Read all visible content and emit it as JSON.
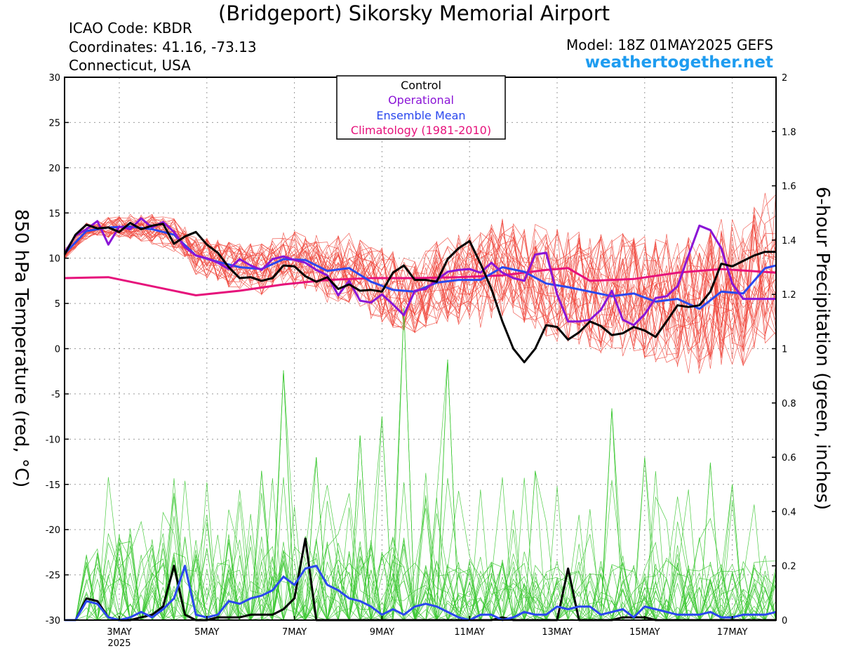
{
  "header": {
    "title": "(Bridgeport) Sikorsky Memorial Airport",
    "icao": "ICAO Code: KBDR",
    "coords": "Coordinates: 41.16, -73.13",
    "region": "Connecticut, USA",
    "model": "Model: 18Z 01MAY2025 GEFS",
    "site": "weathertogether.net"
  },
  "chart_data": {
    "type": "line",
    "title": "(Bridgeport) Sikorsky Memorial Airport",
    "ylabel_left": "850 hPa Temperature (red, °C)",
    "ylabel_right": "6-hour Precipitation (green, inches)",
    "xlim": [
      0,
      16.25
    ],
    "ylim_left": [
      -30,
      30
    ],
    "ylim_right": [
      0,
      2
    ],
    "yticks_left": [
      "30",
      "25",
      "20",
      "15",
      "10",
      "5",
      "0",
      "-5",
      "-10",
      "-15",
      "-20",
      "-25",
      "-30"
    ],
    "yticks_right": [
      "2",
      "1.8",
      "1.6",
      "1.4",
      "1.2",
      "1",
      "0.8",
      "0.6",
      "0.4",
      "0.2",
      "0"
    ],
    "x_tick_labels": [
      {
        "x": 1.25,
        "label": "3MAY",
        "sub": "2025"
      },
      {
        "x": 3.25,
        "label": "5MAY"
      },
      {
        "x": 5.25,
        "label": "7MAY"
      },
      {
        "x": 7.25,
        "label": "9MAY"
      },
      {
        "x": 9.25,
        "label": "11MAY"
      },
      {
        "x": 11.25,
        "label": "13MAY"
      },
      {
        "x": 13.25,
        "label": "15MAY"
      },
      {
        "x": 15.25,
        "label": "17MAY"
      }
    ],
    "grid": true,
    "legend_position": "top-center",
    "legend": [
      {
        "name": "Control",
        "color": "#000000"
      },
      {
        "name": "Operational",
        "color": "#8a14d6"
      },
      {
        "name": "Ensemble Mean",
        "color": "#2a47ee"
      },
      {
        "name": "Climatology (1981-2010)",
        "color": "#e6127b"
      }
    ],
    "series": [
      {
        "key": "climatology",
        "color": "#e6127b",
        "axis": "left",
        "width": 3,
        "x": [
          0,
          1,
          3,
          4,
          5,
          6,
          7,
          8,
          9,
          10,
          11,
          11.5,
          12,
          13,
          14,
          15,
          16.25
        ],
        "y": [
          7.8,
          7.9,
          5.9,
          6.4,
          7.1,
          7.6,
          7.8,
          7.8,
          7.9,
          8.1,
          8.7,
          8.9,
          7.5,
          7.7,
          8.4,
          8.8,
          8.4
        ]
      },
      {
        "key": "ensemble_mean_temp",
        "color": "#2a47ee",
        "axis": "left",
        "width": 3,
        "x": [
          0,
          0.5,
          1,
          1.5,
          2,
          2.5,
          3,
          3.5,
          4,
          4.5,
          5,
          5.5,
          6,
          6.5,
          7,
          7.5,
          8,
          8.5,
          9,
          9.5,
          10,
          10.5,
          11,
          11.5,
          12,
          12.5,
          13,
          13.5,
          14,
          14.5,
          15,
          15.5,
          16,
          16.25
        ],
        "y": [
          10.5,
          13,
          13.4,
          13.5,
          13.2,
          12.6,
          10.3,
          9.6,
          9,
          8.8,
          9.9,
          9.8,
          8.6,
          8.9,
          7.4,
          6.5,
          6.3,
          7.3,
          7.6,
          7.6,
          9,
          8.5,
          7.2,
          6.8,
          6.3,
          5.8,
          6.1,
          5.2,
          5.5,
          4.4,
          6.3,
          6.1,
          8.9,
          9.2
        ]
      },
      {
        "key": "operational",
        "color": "#8a14d6",
        "axis": "left",
        "width": 3,
        "x": [
          0,
          0.25,
          0.5,
          0.75,
          1,
          1.25,
          1.5,
          1.75,
          2,
          2.25,
          2.5,
          2.75,
          3,
          3.25,
          3.5,
          3.75,
          4,
          4.25,
          4.5,
          4.75,
          5,
          5.25,
          5.5,
          5.75,
          6,
          6.25,
          6.5,
          6.75,
          7,
          7.25,
          7.5,
          7.75,
          8,
          8.25,
          8.5,
          8.75,
          9,
          9.25,
          9.5,
          9.75,
          10,
          10.25,
          10.5,
          10.75,
          11,
          11.25,
          11.5,
          11.75,
          12,
          12.25,
          12.5,
          12.75,
          13,
          13.25,
          13.5,
          13.75,
          14,
          14.25,
          14.5,
          14.75,
          15,
          15.25,
          15.5,
          15.75,
          16,
          16.25
        ],
        "y": [
          10.6,
          12.5,
          13.2,
          14.1,
          11.5,
          13.5,
          13.2,
          14.4,
          13.4,
          14,
          12.9,
          11.2,
          10.3,
          10,
          9.5,
          8.8,
          9.9,
          9.2,
          8.7,
          9.9,
          10.2,
          9.8,
          9.5,
          8.7,
          8.1,
          5.9,
          7.5,
          5.3,
          5.1,
          6,
          4.9,
          3.7,
          6.4,
          6.6,
          7.6,
          8.5,
          8.7,
          8.8,
          8.4,
          9.5,
          8.4,
          7.8,
          7.5,
          10.4,
          10.6,
          6,
          3,
          3,
          3.2,
          4.3,
          6.4,
          3.2,
          2.6,
          3.8,
          5.6,
          5.8,
          6.9,
          10.3,
          13.6,
          13.1,
          11.1,
          7.2,
          5.5,
          5.5,
          5.5,
          5.5
        ]
      },
      {
        "key": "control",
        "color": "#000000",
        "axis": "left",
        "width": 3,
        "x": [
          0,
          0.25,
          0.5,
          0.75,
          1,
          1.25,
          1.5,
          1.75,
          2,
          2.25,
          2.5,
          2.75,
          3,
          3.25,
          3.5,
          3.75,
          4,
          4.25,
          4.5,
          4.75,
          5,
          5.25,
          5.5,
          5.75,
          6,
          6.25,
          6.5,
          6.75,
          7,
          7.25,
          7.5,
          7.75,
          8,
          8.25,
          8.5,
          8.75,
          9,
          9.25,
          9.5,
          9.75,
          10,
          10.25,
          10.5,
          10.75,
          11,
          11.25,
          11.5,
          11.75,
          12,
          12.25,
          12.5,
          12.75,
          13,
          13.25,
          13.5,
          13.75,
          14,
          14.25,
          14.5,
          14.75,
          15,
          15.25,
          15.5,
          15.75,
          16,
          16.25
        ],
        "y": [
          10.4,
          12.6,
          13.7,
          13.3,
          13.4,
          12.9,
          13.9,
          13.2,
          13.6,
          13.8,
          11.6,
          12.4,
          12.9,
          11.5,
          10.6,
          9,
          7.8,
          7.9,
          7.5,
          7.8,
          9.2,
          9.1,
          8,
          7.4,
          7.9,
          6.6,
          7.1,
          6.4,
          6.5,
          6.3,
          8.4,
          9.2,
          7.6,
          7.6,
          7.4,
          9.9,
          11.1,
          11.9,
          9.4,
          6.6,
          3,
          0,
          -1.5,
          0,
          2.6,
          2.4,
          1,
          1.8,
          3,
          2.5,
          1.5,
          1.7,
          2.4,
          2,
          1.3,
          3,
          4.8,
          4.6,
          4.8,
          6.3,
          9.4,
          9.1,
          9.7,
          10.3,
          10.7,
          10.7
        ]
      },
      {
        "key": "ensemble_mean_precip",
        "color": "#2a47ee",
        "axis": "right",
        "width": 3,
        "x": [
          0,
          0.25,
          0.5,
          0.75,
          1,
          1.25,
          1.5,
          1.75,
          2,
          2.25,
          2.5,
          2.75,
          3,
          3.25,
          3.5,
          3.75,
          4,
          4.25,
          4.5,
          4.75,
          5,
          5.25,
          5.5,
          5.75,
          6,
          6.25,
          6.5,
          6.75,
          7,
          7.25,
          7.5,
          7.75,
          8,
          8.25,
          8.5,
          8.75,
          9,
          9.25,
          9.5,
          9.75,
          10,
          10.25,
          10.5,
          10.75,
          11,
          11.25,
          11.5,
          11.75,
          12,
          12.25,
          12.5,
          12.75,
          13,
          13.25,
          13.5,
          13.75,
          14,
          14.25,
          14.5,
          14.75,
          15,
          15.25,
          15.5,
          15.75,
          16,
          16.25
        ],
        "y": [
          0,
          0,
          0.07,
          0.06,
          0.01,
          0,
          0.01,
          0.03,
          0.01,
          0.04,
          0.08,
          0.2,
          0.02,
          0.01,
          0.02,
          0.07,
          0.06,
          0.08,
          0.09,
          0.11,
          0.16,
          0.13,
          0.19,
          0.2,
          0.13,
          0.11,
          0.08,
          0.07,
          0.05,
          0.02,
          0.04,
          0.02,
          0.05,
          0.06,
          0.05,
          0.03,
          0.01,
          0,
          0.02,
          0.02,
          0,
          0.01,
          0.03,
          0.02,
          0.02,
          0.05,
          0.04,
          0.05,
          0.05,
          0.02,
          0.03,
          0.04,
          0.01,
          0.05,
          0.04,
          0.03,
          0.02,
          0.02,
          0.02,
          0.03,
          0.01,
          0.01,
          0.02,
          0.02,
          0.02,
          0.03
        ]
      },
      {
        "key": "control_precip",
        "color": "#000000",
        "axis": "right",
        "width": 3,
        "x": [
          0,
          0.25,
          0.5,
          0.75,
          1,
          1.25,
          1.5,
          1.75,
          2,
          2.25,
          2.5,
          2.75,
          3,
          3.25,
          3.5,
          3.75,
          4,
          4.25,
          4.5,
          4.75,
          5,
          5.25,
          5.5,
          5.75,
          6,
          6.25,
          6.5,
          6.75,
          7,
          7.25,
          7.5,
          7.75,
          8,
          8.25,
          8.5,
          8.75,
          9,
          9.25,
          9.5,
          9.75,
          10,
          10.25,
          10.5,
          10.75,
          11,
          11.25,
          11.5,
          11.75,
          12,
          12.25,
          12.5,
          12.75,
          13,
          13.25,
          13.5,
          13.75,
          14,
          14.25,
          14.5,
          14.75,
          15,
          15.25,
          15.5,
          15.75,
          16,
          16.25
        ],
        "y": [
          0,
          0,
          0.08,
          0.07,
          0.01,
          0,
          0,
          0.01,
          0.02,
          0.05,
          0.2,
          0.02,
          0,
          0,
          0.01,
          0.01,
          0.01,
          0.02,
          0.02,
          0.02,
          0.04,
          0.08,
          0.3,
          0,
          0,
          0,
          0,
          0,
          0,
          0,
          0,
          0,
          0,
          0,
          0,
          0,
          0,
          0,
          0,
          0,
          0.01,
          0,
          0,
          0,
          0,
          0,
          0.19,
          0,
          0,
          0,
          0,
          0.01,
          0.01,
          0.01,
          0,
          0,
          0,
          0,
          0,
          0,
          0,
          0,
          0,
          0,
          0,
          0
        ]
      }
    ]
  }
}
